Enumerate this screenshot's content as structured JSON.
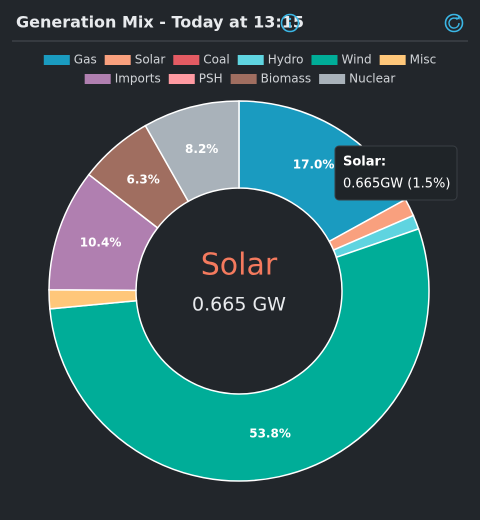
{
  "chart_data": {
    "type": "donut",
    "title": "Generation Mix - Today at 13:15",
    "categories": [
      "Gas",
      "Solar",
      "Coal",
      "Hydro",
      "Wind",
      "Misc",
      "Imports",
      "PSH",
      "Biomass",
      "Nuclear"
    ],
    "values": [
      17.0,
      1.5,
      0,
      1.2,
      53.8,
      1.6,
      10.4,
      0,
      6.3,
      8.2
    ],
    "value_labels": [
      "17.0%",
      null,
      null,
      null,
      "53.8%",
      null,
      "10.4%",
      null,
      "6.3%",
      "8.2%"
    ],
    "colors": [
      "#1a9bc0",
      "#f9a07e",
      "#e45b63",
      "#5fd4e0",
      "#00ad98",
      "#ffc77a",
      "#b07fb0",
      "#ff9aa2",
      "#a06e60",
      "#a9b2ba"
    ]
  },
  "center": {
    "label": "Solar",
    "value": "0.665 GW"
  },
  "tooltip": {
    "title": "Solar:",
    "text": "0.665GW (1.5%)"
  }
}
